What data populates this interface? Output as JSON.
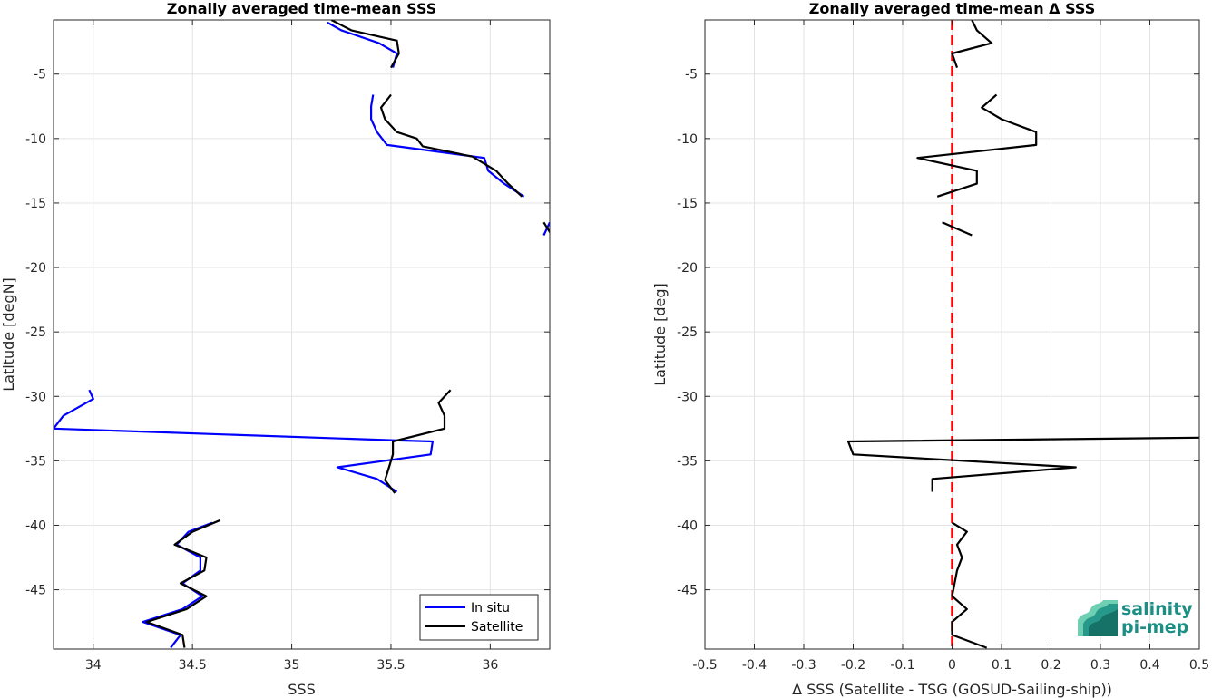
{
  "chart_data": [
    {
      "type": "line",
      "title": "Zonally averaged time-mean SSS",
      "xlabel": "SSS",
      "ylabel": "Latitude [degN]",
      "xlim": [
        33.8,
        36.3
      ],
      "ylim": [
        -49.6,
        -0.8
      ],
      "xticks": [
        34,
        34.5,
        35,
        35.5,
        36
      ],
      "yticks": [
        -5,
        -10,
        -15,
        -20,
        -25,
        -30,
        -35,
        -40,
        -45
      ],
      "grid": true,
      "legend": "bottom-right",
      "series": [
        {
          "name": "In situ",
          "color": "#0000ff",
          "segments": [
            [
              [
                35.18,
                -1.0
              ],
              [
                35.25,
                -1.6
              ],
              [
                35.44,
                -2.6
              ],
              [
                35.53,
                -3.4
              ],
              [
                35.51,
                -4.5
              ]
            ],
            [
              [
                35.41,
                -6.6
              ],
              [
                35.4,
                -7.5
              ],
              [
                35.4,
                -8.5
              ],
              [
                35.43,
                -9.5
              ],
              [
                35.48,
                -10.5
              ],
              [
                35.97,
                -11.5
              ],
              [
                35.99,
                -12.5
              ],
              [
                36.07,
                -13.5
              ],
              [
                36.17,
                -14.5
              ]
            ],
            [
              [
                36.3,
                -16.5
              ],
              [
                36.27,
                -17.5
              ]
            ],
            [
              [
                33.98,
                -29.5
              ],
              [
                34.0,
                -30.2
              ],
              [
                33.85,
                -31.5
              ],
              [
                33.8,
                -32.5
              ],
              [
                35.5,
                -33.4
              ],
              [
                35.71,
                -33.5
              ],
              [
                35.7,
                -34.5
              ],
              [
                35.23,
                -35.5
              ],
              [
                35.43,
                -36.4
              ],
              [
                35.53,
                -37.4
              ]
            ],
            [
              [
                34.6,
                -39.8
              ],
              [
                34.48,
                -40.5
              ],
              [
                34.42,
                -41.5
              ],
              [
                34.54,
                -42.5
              ],
              [
                34.54,
                -43.5
              ],
              [
                34.45,
                -44.5
              ],
              [
                34.55,
                -45.5
              ],
              [
                34.45,
                -46.5
              ],
              [
                34.25,
                -47.5
              ],
              [
                34.44,
                -48.5
              ],
              [
                34.39,
                -49.5
              ]
            ]
          ]
        },
        {
          "name": "Satellite",
          "color": "#000000",
          "segments": [
            [
              [
                35.2,
                -0.8
              ],
              [
                35.3,
                -1.6
              ],
              [
                35.53,
                -2.4
              ],
              [
                35.54,
                -3.4
              ],
              [
                35.5,
                -4.5
              ]
            ],
            [
              [
                35.5,
                -6.6
              ],
              [
                35.45,
                -7.6
              ],
              [
                35.47,
                -8.5
              ],
              [
                35.53,
                -9.5
              ],
              [
                35.63,
                -10.0
              ],
              [
                35.66,
                -10.6
              ],
              [
                35.91,
                -11.4
              ],
              [
                36.03,
                -12.5
              ],
              [
                36.09,
                -13.5
              ],
              [
                36.16,
                -14.5
              ]
            ],
            [
              [
                36.27,
                -16.5
              ],
              [
                36.31,
                -17.5
              ]
            ],
            [
              [
                35.8,
                -29.5
              ],
              [
                35.74,
                -30.5
              ],
              [
                35.77,
                -31.5
              ],
              [
                35.77,
                -32.5
              ],
              [
                35.51,
                -33.5
              ],
              [
                35.51,
                -34.5
              ],
              [
                35.49,
                -35.5
              ],
              [
                35.47,
                -36.5
              ],
              [
                35.52,
                -37.5
              ]
            ],
            [
              [
                34.64,
                -39.6
              ],
              [
                34.5,
                -40.5
              ],
              [
                34.41,
                -41.5
              ],
              [
                34.57,
                -42.5
              ],
              [
                34.56,
                -43.5
              ],
              [
                34.44,
                -44.5
              ],
              [
                34.57,
                -45.5
              ],
              [
                34.47,
                -46.5
              ],
              [
                34.27,
                -47.5
              ],
              [
                34.45,
                -48.5
              ],
              [
                34.46,
                -49.5
              ]
            ]
          ]
        }
      ]
    },
    {
      "type": "line",
      "title": "Zonally averaged time-mean Δ SSS",
      "xlabel": "Δ SSS (Satellite - TSG (GOSUD-Sailing-ship))",
      "ylabel": "Latitude [deg]",
      "xlim": [
        -0.5,
        0.5
      ],
      "ylim": [
        -49.6,
        -0.8
      ],
      "xticks": [
        -0.5,
        -0.4,
        -0.3,
        -0.2,
        -0.1,
        0,
        0.1,
        0.2,
        0.3,
        0.4,
        0.5
      ],
      "yticks": [
        -5,
        -10,
        -15,
        -20,
        -25,
        -30,
        -35,
        -40,
        -45
      ],
      "grid": true,
      "reference_line": {
        "x": 0,
        "color": "#ff0000",
        "style": "dashed"
      },
      "series": [
        {
          "name": "",
          "color": "#000000",
          "segments": [
            [
              [
                0.04,
                -0.8
              ],
              [
                0.05,
                -1.6
              ],
              [
                0.08,
                -2.6
              ],
              [
                0.0,
                -3.4
              ],
              [
                0.01,
                -4.5
              ]
            ],
            [
              [
                0.09,
                -6.6
              ],
              [
                0.06,
                -7.6
              ],
              [
                0.1,
                -8.5
              ],
              [
                0.17,
                -9.5
              ],
              [
                0.17,
                -10.5
              ],
              [
                -0.07,
                -11.5
              ],
              [
                0.05,
                -12.5
              ],
              [
                0.05,
                -13.5
              ],
              [
                -0.03,
                -14.5
              ]
            ],
            [
              [
                -0.02,
                -16.5
              ],
              [
                0.04,
                -17.5
              ]
            ],
            [
              [
                0.5,
                -33.2
              ],
              [
                -0.21,
                -33.5
              ],
              [
                -0.2,
                -34.5
              ],
              [
                0.25,
                -35.5
              ],
              [
                -0.04,
                -36.4
              ],
              [
                -0.04,
                -37.4
              ]
            ],
            [
              [
                0.0,
                -39.8
              ],
              [
                0.03,
                -40.5
              ],
              [
                0.01,
                -41.5
              ],
              [
                0.02,
                -42.5
              ],
              [
                0.01,
                -43.5
              ],
              [
                0.0,
                -45.5
              ],
              [
                0.03,
                -46.5
              ],
              [
                0.0,
                -47.5
              ],
              [
                0.0,
                -48.5
              ],
              [
                0.07,
                -49.5
              ]
            ]
          ]
        }
      ]
    }
  ],
  "logo": {
    "line1": "salinity",
    "line2": "pi-mep",
    "colors": [
      "#1b8f84",
      "#6fcfb3",
      "#0f5f58"
    ]
  }
}
